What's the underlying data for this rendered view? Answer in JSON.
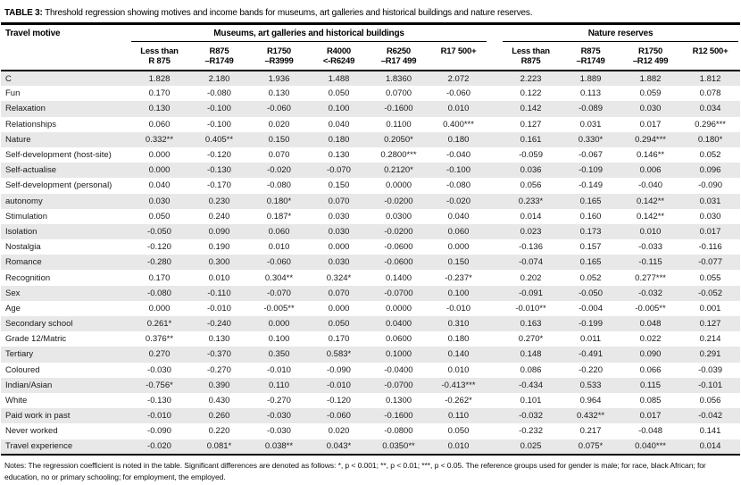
{
  "title": {
    "label": "TABLE 3:",
    "text": "Threshold regression showing motives and income bands for museums, art galleries and historical buildings and nature reserves."
  },
  "table": {
    "motive_header": "Travel motive",
    "groups": [
      {
        "label": "Museums, art galleries and historical buildings"
      },
      {
        "label": "Nature reserves"
      }
    ],
    "columns": [
      {
        "line1": "Less than",
        "line2": "R 875"
      },
      {
        "line1": "R875",
        "line2": "–R1749"
      },
      {
        "line1": "R1750",
        "line2": "–R3999"
      },
      {
        "line1": "R4000",
        "line2": "<-R6249"
      },
      {
        "line1": "R6250",
        "line2": "–R17 499"
      },
      {
        "line1": "R17 500+",
        "line2": ""
      },
      {
        "line1": "Less than",
        "line2": "R875"
      },
      {
        "line1": "R875",
        "line2": "–R1749"
      },
      {
        "line1": "R1750",
        "line2": "–R12 499"
      },
      {
        "line1": "R12 500+",
        "line2": ""
      }
    ],
    "rows": [
      {
        "label": "C",
        "values": [
          "1.828",
          "2.180",
          "1.936",
          "1.488",
          "1.8360",
          "2.072",
          "2.223",
          "1.889",
          "1.882",
          "1.812"
        ]
      },
      {
        "label": "Fun",
        "values": [
          "0.170",
          "-0.080",
          "0.130",
          "0.050",
          "0.0700",
          "-0.060",
          "0.122",
          "0.113",
          "0.059",
          "0.078"
        ]
      },
      {
        "label": "Relaxation",
        "values": [
          "0.130",
          "-0.100",
          "-0.060",
          "0.100",
          "-0.1600",
          "0.010",
          "0.142",
          "-0.089",
          "0.030",
          "0.034"
        ]
      },
      {
        "label": "Relationships",
        "values": [
          "0.060",
          "-0.100",
          "0.020",
          "0.040",
          "0.1100",
          "0.400***",
          "0.127",
          "0.031",
          "0.017",
          "0.296***"
        ]
      },
      {
        "label": "Nature",
        "values": [
          "0.332**",
          "0.405**",
          "0.150",
          "0.180",
          "0.2050*",
          "0.180",
          "0.161",
          "0.330*",
          "0.294***",
          "0.180*"
        ]
      },
      {
        "label": "Self-development (host-site)",
        "values": [
          "0.000",
          "-0.120",
          "0.070",
          "0.130",
          "0.2800***",
          "-0.040",
          "-0.059",
          "-0.067",
          "0.146**",
          "0.052"
        ]
      },
      {
        "label": "Self-actualise",
        "values": [
          "0.000",
          "-0.130",
          "-0.020",
          "-0.070",
          "0.2120*",
          "-0.100",
          "0.036",
          "-0.109",
          "0.006",
          "0.096"
        ]
      },
      {
        "label": "Self-development (personal)",
        "values": [
          "0.040",
          "-0.170",
          "-0.080",
          "0.150",
          "0.0000",
          "-0.080",
          "0.056",
          "-0.149",
          "-0.040",
          "-0.090"
        ]
      },
      {
        "label": "autonomy",
        "values": [
          "0.030",
          "0.230",
          "0.180*",
          "0.070",
          "-0.0200",
          "-0.020",
          "0.233*",
          "0.165",
          "0.142**",
          "0.031"
        ]
      },
      {
        "label": "Stimulation",
        "values": [
          "0.050",
          "0.240",
          "0.187*",
          "0.030",
          "0.0300",
          "0.040",
          "0.014",
          "0.160",
          "0.142**",
          "0.030"
        ]
      },
      {
        "label": "Isolation",
        "values": [
          "-0.050",
          "0.090",
          "0.060",
          "0.030",
          "-0.0200",
          "0.060",
          "0.023",
          "0.173",
          "0.010",
          "0.017"
        ]
      },
      {
        "label": "Nostalgia",
        "values": [
          "-0.120",
          "0.190",
          "0.010",
          "0.000",
          "-0.0600",
          "0.000",
          "-0.136",
          "0.157",
          "-0.033",
          "-0.116"
        ]
      },
      {
        "label": "Romance",
        "values": [
          "-0.280",
          "0.300",
          "-0.060",
          "0.030",
          "-0.0600",
          "0.150",
          "-0.074",
          "0.165",
          "-0.115",
          "-0.077"
        ]
      },
      {
        "label": "Recognition",
        "values": [
          "0.170",
          "0.010",
          "0.304**",
          "0.324*",
          "0.1400",
          "-0.237*",
          "0.202",
          "0.052",
          "0.277***",
          "0.055"
        ]
      },
      {
        "label": "Sex",
        "values": [
          "-0.080",
          "-0.110",
          "-0.070",
          "0.070",
          "-0.0700",
          "0.100",
          "-0.091",
          "-0.050",
          "-0.032",
          "-0.052"
        ]
      },
      {
        "label": "Age",
        "values": [
          "0.000",
          "-0.010",
          "-0.005**",
          "0.000",
          "0.0000",
          "-0.010",
          "-0.010**",
          "-0.004",
          "-0.005**",
          "0.001"
        ]
      },
      {
        "label": "Secondary school",
        "values": [
          "0.261*",
          "-0.240",
          "0.000",
          "0.050",
          "0.0400",
          "0.310",
          "0.163",
          "-0.199",
          "0.048",
          "0.127"
        ]
      },
      {
        "label": "Grade 12/Matric",
        "values": [
          "0.376**",
          "0.130",
          "0.100",
          "0.170",
          "0.0600",
          "0.180",
          "0.270*",
          "0.011",
          "0.022",
          "0.214"
        ]
      },
      {
        "label": "Tertiary",
        "values": [
          "0.270",
          "-0.370",
          "0.350",
          "0.583*",
          "0.1000",
          "0.140",
          "0.148",
          "-0.491",
          "0.090",
          "0.291"
        ]
      },
      {
        "label": "Coloured",
        "values": [
          "-0.030",
          "-0.270",
          "-0.010",
          "-0.090",
          "-0.0400",
          "0.010",
          "0.086",
          "-0.220",
          "0.066",
          "-0.039"
        ]
      },
      {
        "label": "Indian/Asian",
        "values": [
          "-0.756*",
          "0.390",
          "0.110",
          "-0.010",
          "-0.0700",
          "-0.413***",
          "-0.434",
          "0.533",
          "0.115",
          "-0.101"
        ]
      },
      {
        "label": "White",
        "values": [
          "-0.130",
          "0.430",
          "-0.270",
          "-0.120",
          "0.1300",
          "-0.262*",
          "0.101",
          "0.964",
          "0.085",
          "0.056"
        ]
      },
      {
        "label": "Paid work in past",
        "values": [
          "-0.010",
          "0.260",
          "-0.030",
          "-0.060",
          "-0.1600",
          "0.110",
          "-0.032",
          "0.432**",
          "0.017",
          "-0.042"
        ]
      },
      {
        "label": "Never worked",
        "values": [
          "-0.090",
          "0.220",
          "-0.030",
          "0.020",
          "-0.0800",
          "0.050",
          "-0.232",
          "0.217",
          "-0.048",
          "0.141"
        ]
      },
      {
        "label": "Travel experience",
        "values": [
          "-0.020",
          "0.081*",
          "0.038**",
          "0.043*",
          "0.0350**",
          "0.010",
          "0.025",
          "0.075*",
          "0.040***",
          "0.014"
        ]
      }
    ]
  },
  "notes": "Notes: The regression coefficient is noted in the table. Significant differences are denoted as follows: *, p < 0.001; **, p < 0.01; ***, p < 0.05. The reference groups used for gender is male; for race, black African; for education, no or primary schooling; for employment, the employed."
}
